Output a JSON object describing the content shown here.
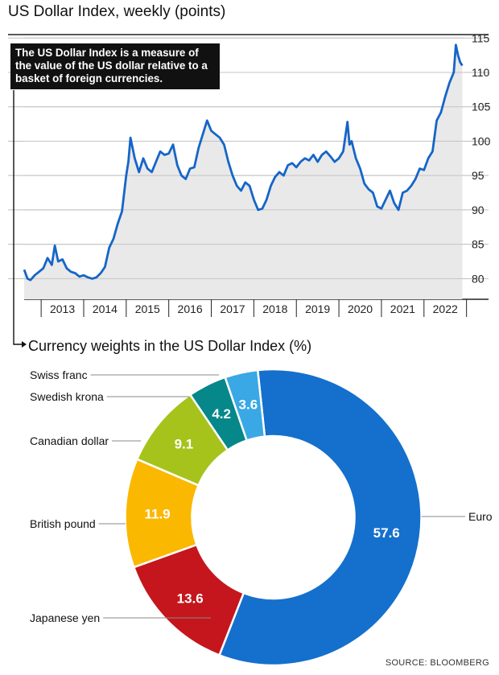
{
  "chart_data": [
    {
      "type": "line",
      "title": "US Dollar Index, weekly (points)",
      "annotation": "The US Dollar Index is a measure of the value of the US dollar relative to a basket of foreign currencies.",
      "x_tick_labels": [
        "2013",
        "2014",
        "2015",
        "2016",
        "2017",
        "2018",
        "2019",
        "2020",
        "2021",
        "2022"
      ],
      "y_tick_labels": [
        "115",
        "110",
        "105",
        "100",
        "95",
        "90",
        "85",
        "80"
      ],
      "ylim": [
        77,
        115.5
      ],
      "xlim": [
        2012.6,
        2022.95
      ],
      "grid": "horizontal",
      "line_color": "#1565c8",
      "fill_color": "#e9e9e9",
      "series": [
        {
          "x": [
            2012.6,
            2012.68,
            2012.75,
            2012.85,
            2012.95,
            2013.05,
            2013.15,
            2013.25,
            2013.32,
            2013.4,
            2013.5,
            2013.6,
            2013.7,
            2013.8,
            2013.9,
            2014.0,
            2014.1,
            2014.2,
            2014.3,
            2014.4,
            2014.5,
            2014.6,
            2014.7,
            2014.8,
            2014.9,
            2015.0,
            2015.05,
            2015.1,
            2015.2,
            2015.3,
            2015.4,
            2015.5,
            2015.6,
            2015.7,
            2015.8,
            2015.9,
            2016.0,
            2016.1,
            2016.2,
            2016.3,
            2016.4,
            2016.5,
            2016.6,
            2016.7,
            2016.8,
            2016.9,
            2017.0,
            2017.1,
            2017.2,
            2017.3,
            2017.4,
            2017.5,
            2017.6,
            2017.7,
            2017.8,
            2017.9,
            2018.0,
            2018.1,
            2018.2,
            2018.3,
            2018.4,
            2018.5,
            2018.6,
            2018.7,
            2018.8,
            2018.9,
            2019.0,
            2019.1,
            2019.2,
            2019.3,
            2019.4,
            2019.5,
            2019.6,
            2019.7,
            2019.8,
            2019.9,
            2020.0,
            2020.1,
            2020.2,
            2020.25,
            2020.3,
            2020.4,
            2020.5,
            2020.6,
            2020.7,
            2020.8,
            2020.9,
            2021.0,
            2021.1,
            2021.2,
            2021.3,
            2021.4,
            2021.5,
            2021.6,
            2021.7,
            2021.8,
            2021.9,
            2022.0,
            2022.1,
            2022.2,
            2022.3,
            2022.4,
            2022.5,
            2022.6,
            2022.7,
            2022.75,
            2022.8,
            2022.85,
            2022.9
          ],
          "y": [
            81.3,
            80.0,
            79.8,
            80.5,
            81.0,
            81.5,
            83.0,
            82.0,
            84.8,
            82.5,
            82.8,
            81.5,
            81.0,
            80.8,
            80.3,
            80.5,
            80.2,
            80.0,
            80.2,
            80.8,
            81.7,
            84.5,
            85.8,
            88.0,
            89.8,
            95.0,
            97.0,
            100.5,
            97.5,
            95.5,
            97.5,
            96.0,
            95.5,
            97.0,
            98.5,
            98.0,
            98.2,
            99.5,
            96.5,
            95.0,
            94.5,
            96.0,
            96.2,
            99.0,
            101.0,
            103.0,
            101.5,
            101.0,
            100.5,
            99.5,
            97.0,
            95.0,
            93.5,
            92.8,
            94.0,
            93.5,
            91.5,
            90.0,
            90.2,
            91.5,
            93.5,
            94.8,
            95.5,
            95.0,
            96.5,
            96.8,
            96.2,
            97.0,
            97.5,
            97.2,
            98.0,
            97.0,
            98.0,
            98.5,
            97.8,
            97.0,
            97.5,
            98.5,
            102.8,
            99.5,
            100.0,
            97.5,
            96.0,
            93.8,
            93.0,
            92.5,
            90.5,
            90.2,
            91.5,
            92.8,
            91.0,
            90.0,
            92.5,
            92.8,
            93.5,
            94.5,
            96.0,
            95.8,
            97.5,
            98.5,
            103.0,
            104.2,
            106.5,
            108.5,
            110.0,
            114.0,
            112.5,
            111.5,
            111.0
          ]
        }
      ]
    },
    {
      "type": "pie",
      "subtype": "donut",
      "title": "Currency weights in the US Dollar Index (%)",
      "categories": [
        "Euro",
        "Japanese yen",
        "British pound",
        "Canadian dollar",
        "Swedish krona",
        "Swiss franc"
      ],
      "values": [
        57.6,
        13.6,
        11.9,
        9.1,
        4.2,
        3.6
      ],
      "value_labels": [
        "57.6",
        "13.6",
        "11.9",
        "9.1",
        "4.2",
        "3.6"
      ],
      "colors": [
        "#1470cc",
        "#c4161c",
        "#fbb800",
        "#a6c31c",
        "#06878a",
        "#3aa8e4"
      ]
    }
  ],
  "source": "SOURCE: BLOOMBERG"
}
